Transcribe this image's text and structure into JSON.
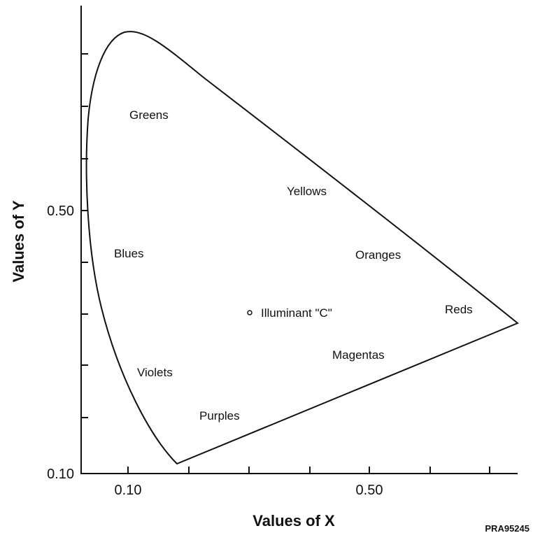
{
  "diagram": {
    "x_axis": {
      "title": "Values of X",
      "tick_labels": [
        "0.10",
        "0.50"
      ]
    },
    "y_axis": {
      "title": "Values of Y",
      "tick_labels": [
        "0.50",
        "0.10"
      ]
    },
    "regions": [
      "Greens",
      "Yellows",
      "Blues",
      "Oranges",
      "Reds",
      "Magentas",
      "Violets",
      "Purples"
    ],
    "illuminant": "Illuminant \"C\"",
    "figure_id": "PRA95245"
  }
}
